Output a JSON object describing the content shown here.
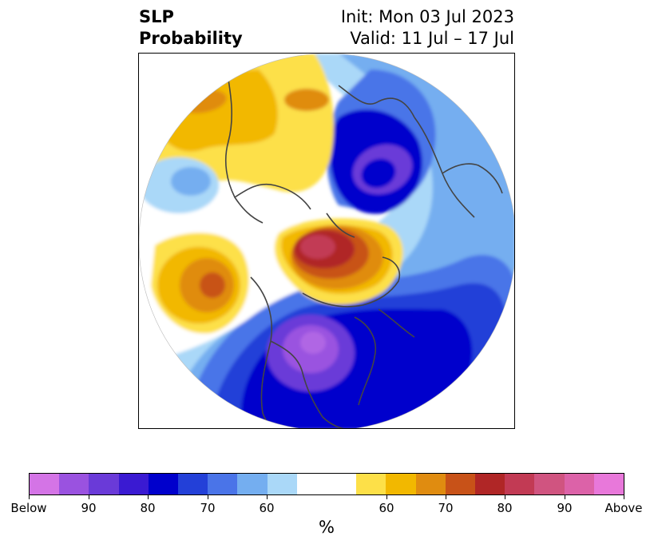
{
  "title": {
    "left_line1": "SLP",
    "left_line2": "Probability",
    "right_line1": "Init: Mon 03 Jul 2023",
    "right_line2": "Valid: 11 Jul – 17 Jul"
  },
  "colorbar": {
    "unit": "%",
    "colors": [
      "#d474e6",
      "#9a52e0",
      "#6a3ad8",
      "#3a1ad2",
      "#0000cc",
      "#2340d8",
      "#4a74e8",
      "#74aef0",
      "#aad8f8",
      "#ffffff",
      "#ffffff",
      "#fde048",
      "#f2b800",
      "#e08c10",
      "#c85218",
      "#b02626",
      "#c23a54",
      "#d05480",
      "#dc62a8",
      "#e878da"
    ],
    "tick_labels": [
      "Below",
      "90",
      "80",
      "70",
      "60",
      "60",
      "70",
      "80",
      "90",
      "Above"
    ]
  },
  "map": {
    "projection": "north-polar-stereographic",
    "palette": {
      "above_strong": "#c23a54",
      "above_red": "#b02626",
      "above_orange": "#c85218",
      "above_amber": "#e08c10",
      "above_gold": "#f2b800",
      "above_yellow": "#fde048",
      "neutral": "#ffffff",
      "below_pale": "#aad8f8",
      "below_light": "#74aef0",
      "below_medium": "#4a74e8",
      "below_blue": "#2340d8",
      "below_deep": "#0000cc",
      "below_violet": "#6a3ad8",
      "below_purple": "#9a52e0",
      "coastline": "#444444"
    }
  }
}
